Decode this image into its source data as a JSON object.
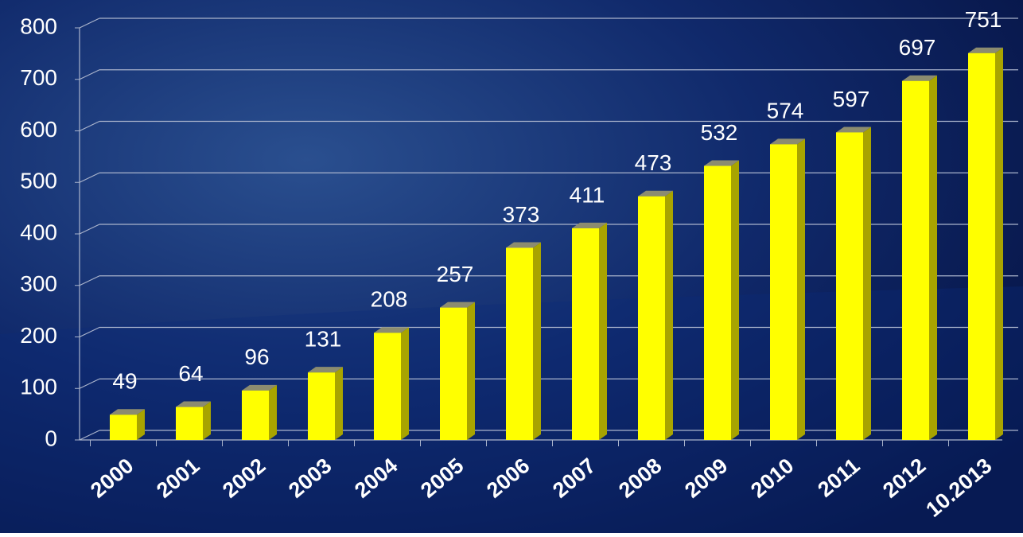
{
  "chart_data": {
    "type": "bar",
    "categories": [
      "2000",
      "2001",
      "2002",
      "2003",
      "2004",
      "2005",
      "2006",
      "2007",
      "2008",
      "2009",
      "2010",
      "2011",
      "2012",
      "10.2013"
    ],
    "values": [
      49,
      64,
      96,
      131,
      208,
      257,
      373,
      411,
      473,
      532,
      574,
      597,
      697,
      751
    ],
    "color": "#ffff00",
    "ylim": [
      0,
      800
    ],
    "yticks": [
      0,
      100,
      200,
      300,
      400,
      500,
      600,
      700,
      800
    ],
    "grid": true
  }
}
